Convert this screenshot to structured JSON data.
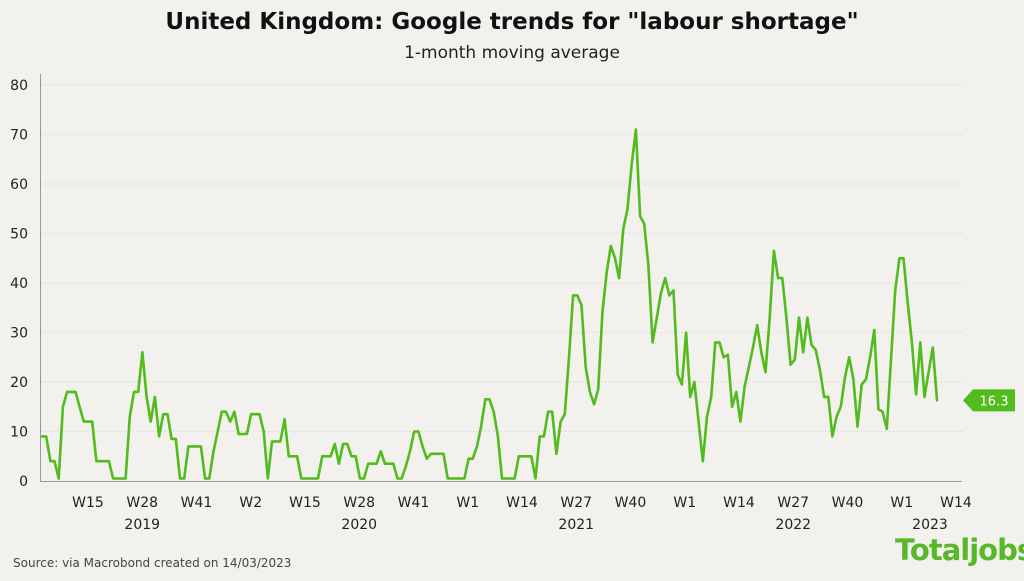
{
  "chart_data": {
    "type": "line",
    "title": "United Kingdom: Google trends for \"labour shortage\"",
    "subtitle": "1-month moving average",
    "ylim": [
      0,
      80
    ],
    "y_ticks": [
      0,
      10,
      20,
      30,
      40,
      50,
      60,
      70,
      80
    ],
    "grid": "horizontal dotted",
    "x_tick_labels": [
      "W15",
      "W28",
      "W41",
      "W2",
      "W15",
      "W28",
      "W41",
      "W1",
      "W14",
      "W27",
      "W40",
      "W1",
      "W14",
      "W27",
      "W40",
      "W1",
      "W14"
    ],
    "year_labels": [
      "2019",
      "2020",
      "2021",
      "2022",
      "2023"
    ],
    "series": [
      {
        "color": "#52bb1e",
        "last_value_label": "16.3",
        "values": [
          9,
          9,
          4,
          4,
          0.5,
          15,
          18,
          18,
          18,
          15,
          12,
          12,
          12,
          4,
          4,
          4,
          4,
          0.5,
          0.5,
          0.5,
          0.5,
          13,
          18,
          18,
          26,
          17,
          12,
          17,
          9,
          13.5,
          13.5,
          8.5,
          8.5,
          0.5,
          0.5,
          7,
          7,
          7,
          7,
          0.5,
          0.5,
          6,
          10,
          14,
          14,
          12,
          14,
          9.5,
          9.5,
          9.5,
          13.5,
          13.5,
          13.5,
          10,
          0.5,
          8,
          8,
          8,
          12.5,
          5,
          5,
          5,
          0.5,
          0.5,
          0.5,
          0.5,
          0.5,
          5,
          5,
          5,
          7.5,
          3.5,
          7.5,
          7.5,
          5,
          5,
          0.5,
          0.5,
          3.5,
          3.5,
          3.5,
          6,
          3.5,
          3.5,
          3.5,
          0.5,
          0.5,
          3,
          6,
          10,
          10,
          7,
          4.5,
          5.5,
          5.5,
          5.5,
          5.5,
          0.5,
          0.5,
          0.5,
          0.5,
          0.5,
          4.5,
          4.5,
          7,
          11,
          16.5,
          16.5,
          14,
          9,
          0.5,
          0.5,
          0.5,
          0.5,
          5,
          5,
          5,
          5,
          0.5,
          9,
          9,
          14,
          14,
          5.5,
          12,
          13.5,
          25,
          37.5,
          37.5,
          35.5,
          23,
          18,
          15.5,
          18.5,
          34,
          42,
          47.5,
          45,
          41,
          51,
          55,
          64,
          71,
          53.5,
          52,
          43.5,
          28,
          33,
          38,
          41,
          37.5,
          38.5,
          21.5,
          19.5,
          30,
          17,
          20,
          12,
          4,
          13,
          17,
          28,
          28,
          25,
          25.5,
          15,
          18,
          12,
          19,
          23,
          27,
          31.5,
          26,
          22,
          33,
          46.5,
          41,
          41,
          33,
          23.5,
          24.5,
          33,
          26,
          33,
          27.5,
          26.5,
          22.5,
          17,
          17,
          9,
          13,
          15,
          21,
          25,
          20.5,
          11,
          19.5,
          20.5,
          25,
          30.5,
          14.5,
          14,
          10.5,
          24.5,
          38.5,
          45,
          45,
          36,
          28,
          17.5,
          28,
          17,
          22,
          27,
          16.3
        ]
      }
    ]
  },
  "source_text": "Source:  via Macrobond created on 14/03/2023",
  "logo_text": "Totaljobs",
  "colors": {
    "series": "#52bb1e",
    "background": "#f2f1ed",
    "logo": "#58b82a"
  }
}
